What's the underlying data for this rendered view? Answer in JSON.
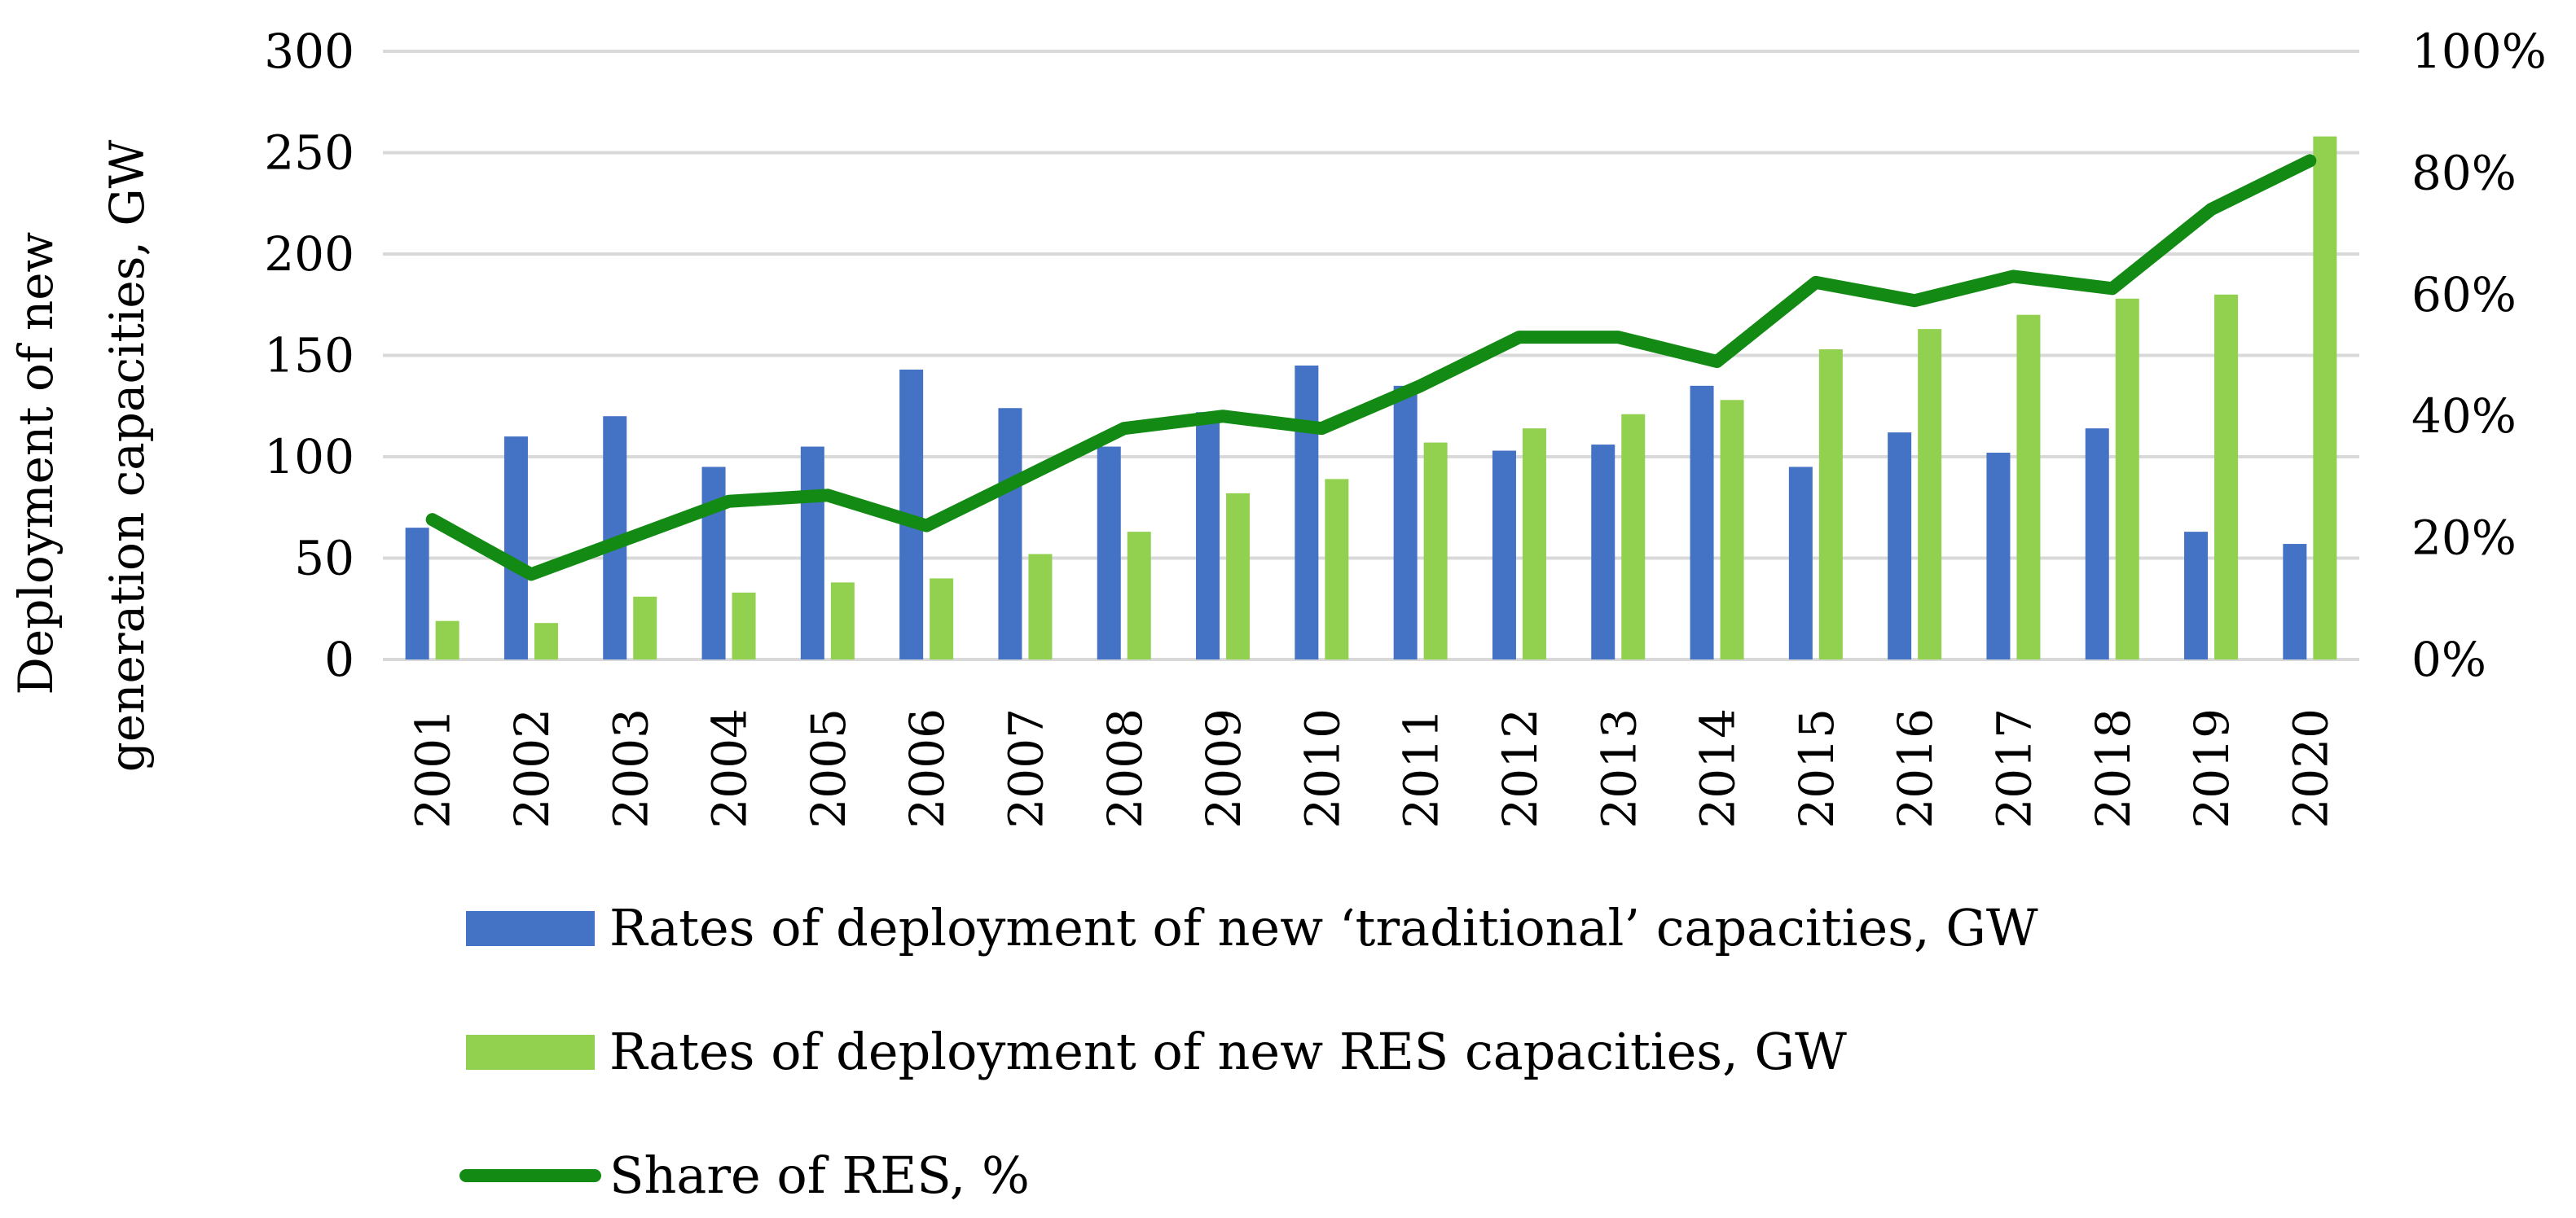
{
  "chart_data": {
    "type": "bar",
    "categories": [
      "2001",
      "2002",
      "2003",
      "2004",
      "2005",
      "2006",
      "2007",
      "2008",
      "2009",
      "2010",
      "2011",
      "2012",
      "2013",
      "2014",
      "2015",
      "2016",
      "2017",
      "2018",
      "2019",
      "2020"
    ],
    "series": [
      {
        "name": "Rates of deployment of new ‘traditional’ capacities, GW",
        "type": "bar",
        "axis": "left",
        "color": "#4472C4",
        "values": [
          65,
          110,
          120,
          95,
          105,
          143,
          124,
          105,
          122,
          145,
          135,
          103,
          106,
          135,
          95,
          112,
          102,
          114,
          63,
          57
        ]
      },
      {
        "name": "Rates of deployment of new RES capacities, GW",
        "type": "bar",
        "axis": "left",
        "color": "#92D050",
        "values": [
          19,
          18,
          31,
          33,
          38,
          40,
          52,
          63,
          82,
          89,
          107,
          114,
          121,
          128,
          153,
          163,
          170,
          178,
          180,
          258
        ]
      },
      {
        "name": "Share of RES, %",
        "type": "line",
        "axis": "right",
        "color": "#138A13",
        "values": [
          23,
          14,
          20,
          26,
          27,
          22,
          30,
          38,
          40,
          38,
          45,
          53,
          53,
          49,
          62,
          59,
          63,
          61,
          74,
          82
        ]
      }
    ],
    "ylabel": "Deployment of new generation capacities, GW",
    "ylim": [
      0,
      300
    ],
    "yticks": [
      "0",
      "50",
      "100",
      "150",
      "200",
      "250",
      "300"
    ],
    "y2lim": [
      0,
      100
    ],
    "y2ticks": [
      "0%",
      "20%",
      "40%",
      "60%",
      "80%",
      "100%"
    ],
    "grid": true,
    "legend_position": "bottom"
  }
}
